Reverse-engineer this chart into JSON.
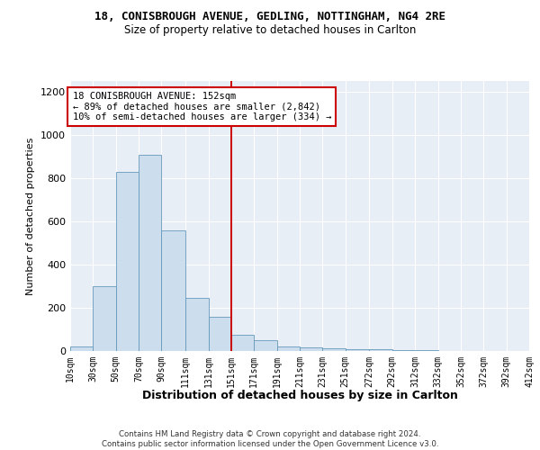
{
  "title": "18, CONISBROUGH AVENUE, GEDLING, NOTTINGHAM, NG4 2RE",
  "subtitle": "Size of property relative to detached houses in Carlton",
  "xlabel": "Distribution of detached houses by size in Carlton",
  "ylabel": "Number of detached properties",
  "bar_color": "#ccdded",
  "bar_edge_color": "#6699bb",
  "background_color": "#e8eef6",
  "annotation_box_color": "#cc0000",
  "vline_color": "#cc0000",
  "annotation_text": "18 CONISBROUGH AVENUE: 152sqm\n← 89% of detached houses are smaller (2,842)\n10% of semi-detached houses are larger (334) →",
  "footer_text": "Contains HM Land Registry data © Crown copyright and database right 2024.\nContains public sector information licensed under the Open Government Licence v3.0.",
  "bin_edges": [
    10,
    30,
    50,
    70,
    90,
    111,
    131,
    151,
    171,
    191,
    211,
    231,
    251,
    272,
    292,
    312,
    332,
    352,
    372,
    392,
    412
  ],
  "bin_labels": [
    "10sqm",
    "30sqm",
    "50sqm",
    "70sqm",
    "90sqm",
    "111sqm",
    "131sqm",
    "151sqm",
    "171sqm",
    "191sqm",
    "211sqm",
    "231sqm",
    "251sqm",
    "272sqm",
    "292sqm",
    "312sqm",
    "332sqm",
    "352sqm",
    "372sqm",
    "392sqm",
    "412sqm"
  ],
  "counts": [
    20,
    300,
    830,
    910,
    560,
    245,
    160,
    75,
    50,
    20,
    18,
    12,
    10,
    8,
    6,
    4,
    2,
    1,
    1,
    0
  ],
  "ylim": [
    0,
    1250
  ],
  "yticks": [
    0,
    200,
    400,
    600,
    800,
    1000,
    1200
  ],
  "vline_x": 151
}
